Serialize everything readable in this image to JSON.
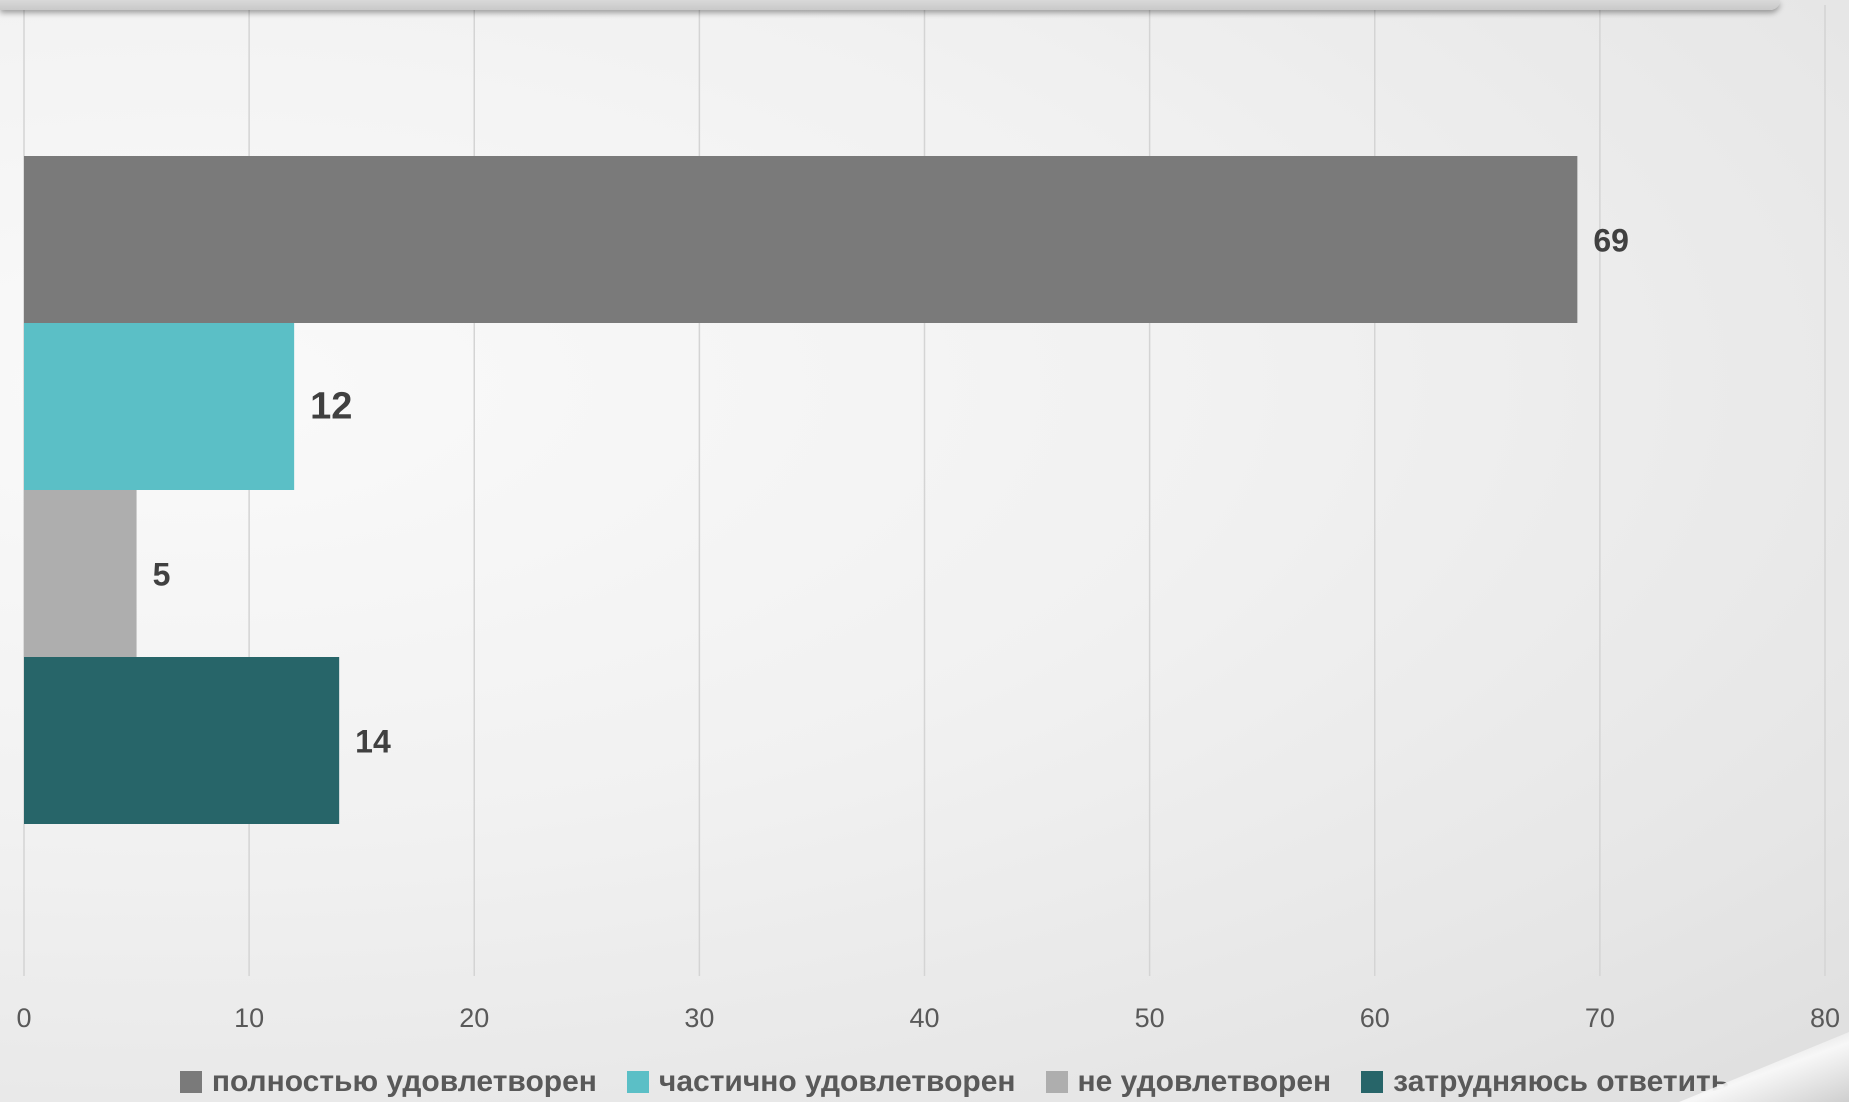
{
  "chart_data": {
    "type": "bar",
    "orientation": "horizontal",
    "categories": [
      "полностью удовлетворен",
      "частично удовлетворен",
      "не удовлетворен",
      "затрудняюсь ответить"
    ],
    "values": [
      69,
      12,
      5,
      14
    ],
    "colors": [
      "#7a7a7a",
      "#5bbfc6",
      "#aeaeae",
      "#276569"
    ],
    "data_labels": [
      "69",
      "12",
      "5",
      "14"
    ],
    "xlim": [
      0,
      80
    ],
    "x_ticks": [
      "0",
      "10",
      "20",
      "30",
      "40",
      "50",
      "60",
      "70",
      "80"
    ],
    "grid": true,
    "legend_position": "bottom",
    "title": "",
    "xlabel": "",
    "ylabel": ""
  },
  "legend": [
    {
      "label": "полностью удовлетворен",
      "color": "#7a7a7a"
    },
    {
      "label": "частично удовлетворен",
      "color": "#5bbfc6"
    },
    {
      "label": "не удовлетворен",
      "color": "#aeaeae"
    },
    {
      "label": "затрудняюсь ответить",
      "color": "#276569"
    }
  ]
}
